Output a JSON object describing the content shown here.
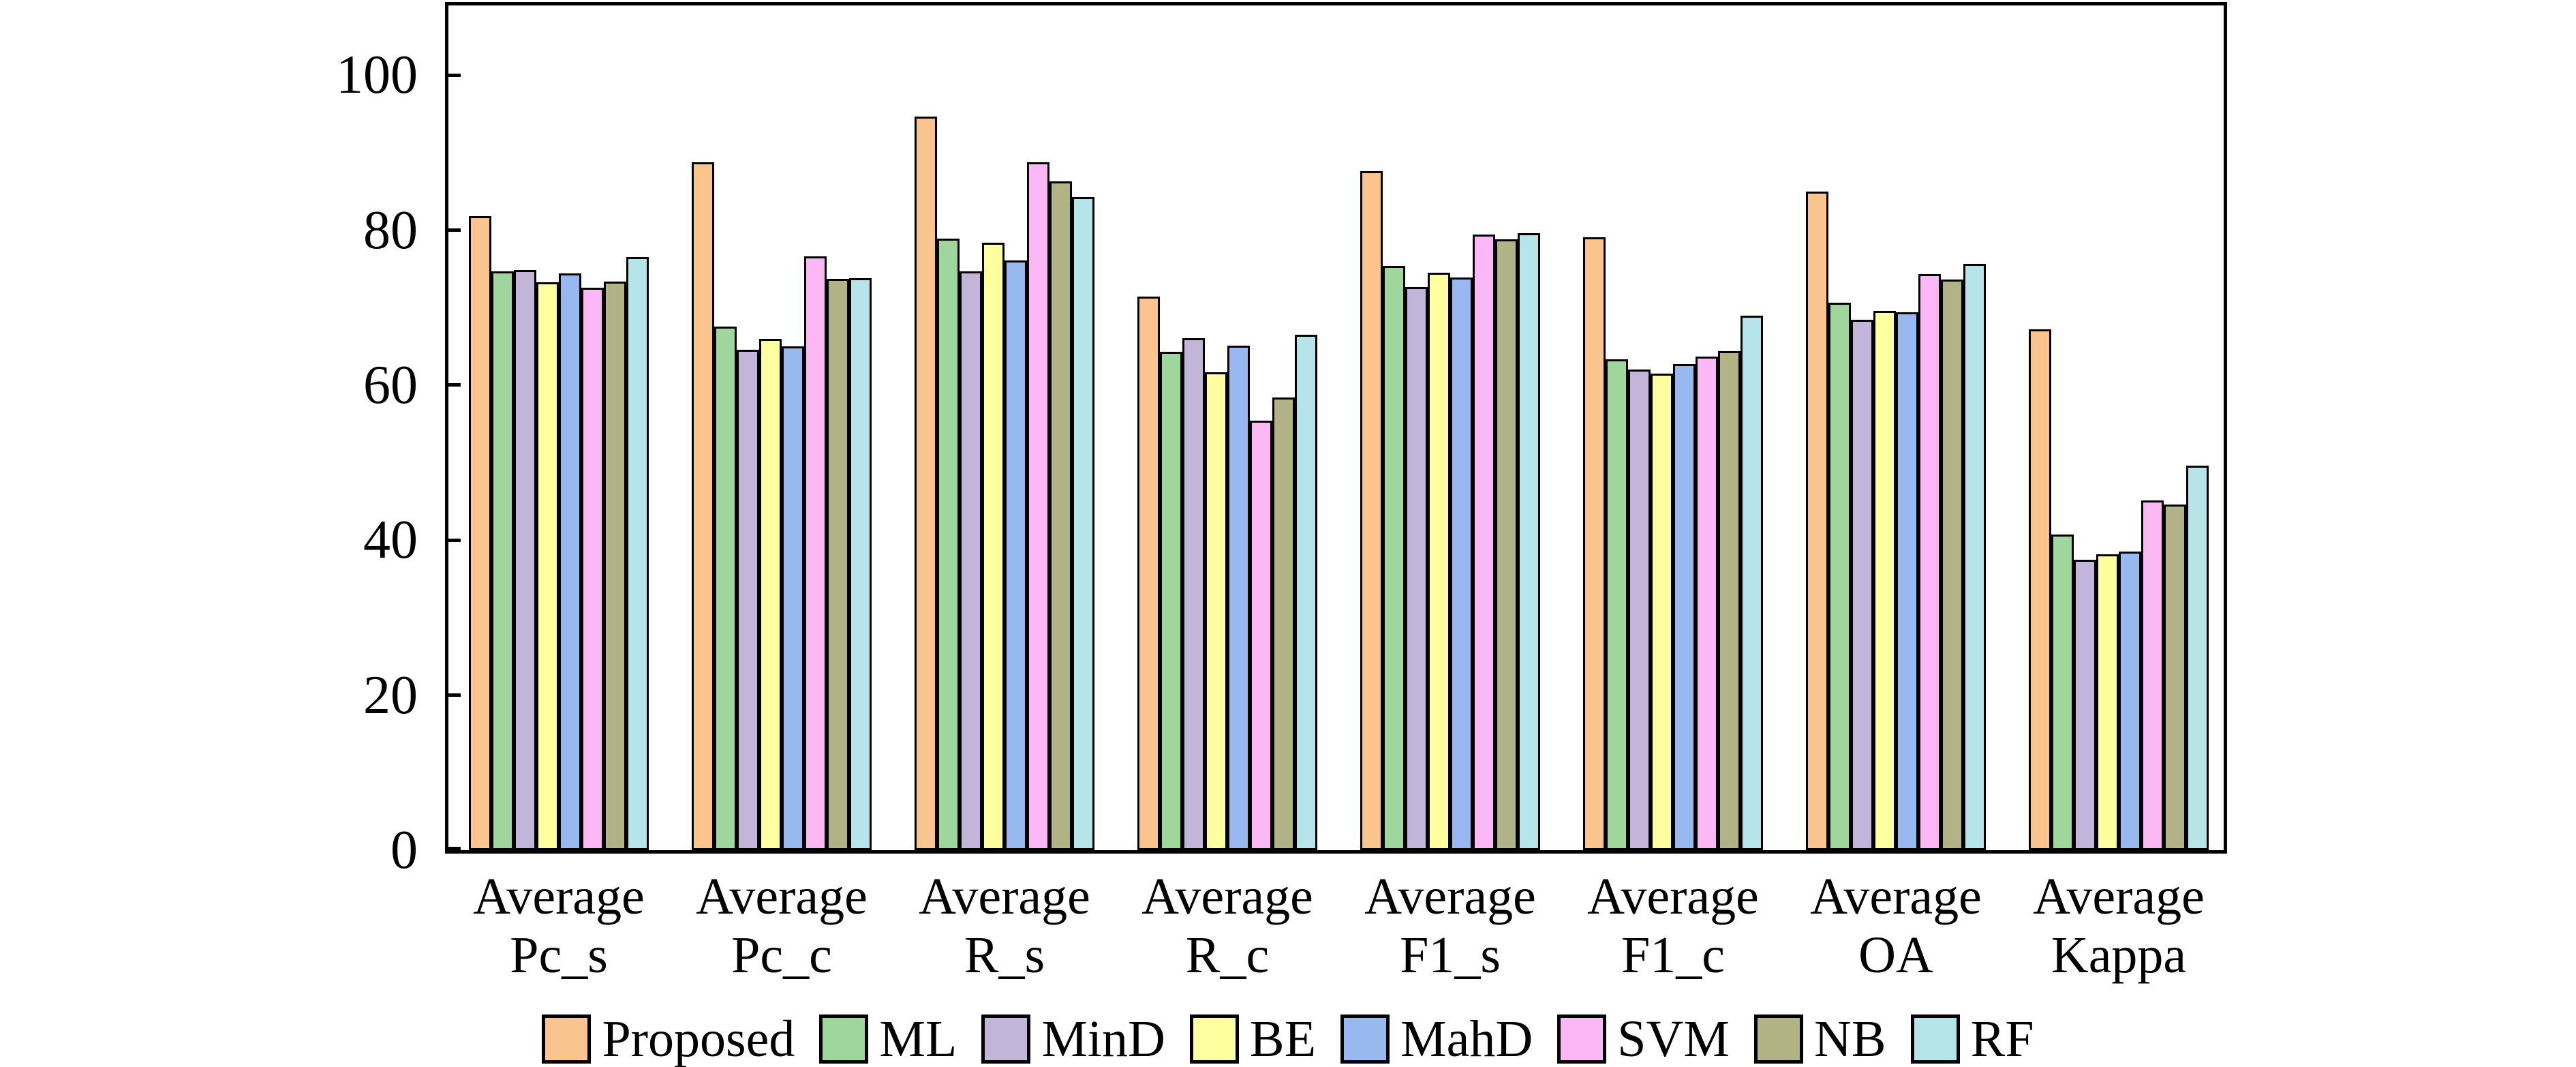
{
  "figure": {
    "background": "#ffffff",
    "frame_color": "#000000",
    "text_color": "#000000"
  },
  "chart_data": {
    "type": "bar",
    "title": "",
    "xlabel": "",
    "ylabel": "",
    "grid": false,
    "legend_position": "bottom",
    "ylim": [
      0,
      109
    ],
    "y_ticks": [
      0,
      20,
      40,
      60,
      80,
      100
    ],
    "category_prefix": "Average",
    "categories": [
      "Pc_s",
      "Pc_c",
      "R_s",
      "R_c",
      "F1_s",
      "F1_c",
      "OA",
      "Kappa"
    ],
    "series": [
      {
        "name": "Proposed",
        "color": "#FAC48E",
        "values": [
          81.8,
          88.8,
          94.7,
          71.4,
          87.6,
          79.1,
          85.0,
          67.2
        ]
      },
      {
        "name": "ML",
        "color": "#9FD69B",
        "values": [
          74.7,
          67.6,
          78.9,
          64.3,
          75.4,
          63.3,
          70.6,
          40.7
        ]
      },
      {
        "name": "MinD",
        "color": "#C3B5DA",
        "values": [
          74.9,
          64.6,
          74.7,
          66.1,
          72.7,
          62.0,
          68.4,
          37.5
        ]
      },
      {
        "name": "BE",
        "color": "#FDFE9D",
        "values": [
          73.3,
          66.0,
          78.4,
          61.7,
          74.5,
          61.5,
          69.6,
          38.2
        ]
      },
      {
        "name": "MahD",
        "color": "#97B9F0",
        "values": [
          74.4,
          65.0,
          76.1,
          65.1,
          73.9,
          62.7,
          69.4,
          38.5
        ]
      },
      {
        "name": "SVM",
        "color": "#FCB7F5",
        "values": [
          72.6,
          76.6,
          88.8,
          55.4,
          79.4,
          63.7,
          74.3,
          45.1
        ]
      },
      {
        "name": "NB",
        "color": "#B2B287",
        "values": [
          73.4,
          73.7,
          86.3,
          58.4,
          78.8,
          64.4,
          73.6,
          44.6
        ]
      },
      {
        "name": "RF",
        "color": "#B5E5E9",
        "values": [
          76.5,
          73.8,
          84.3,
          66.5,
          79.6,
          69.0,
          75.7,
          49.6
        ]
      }
    ],
    "bar_outline_color": "#000000"
  }
}
